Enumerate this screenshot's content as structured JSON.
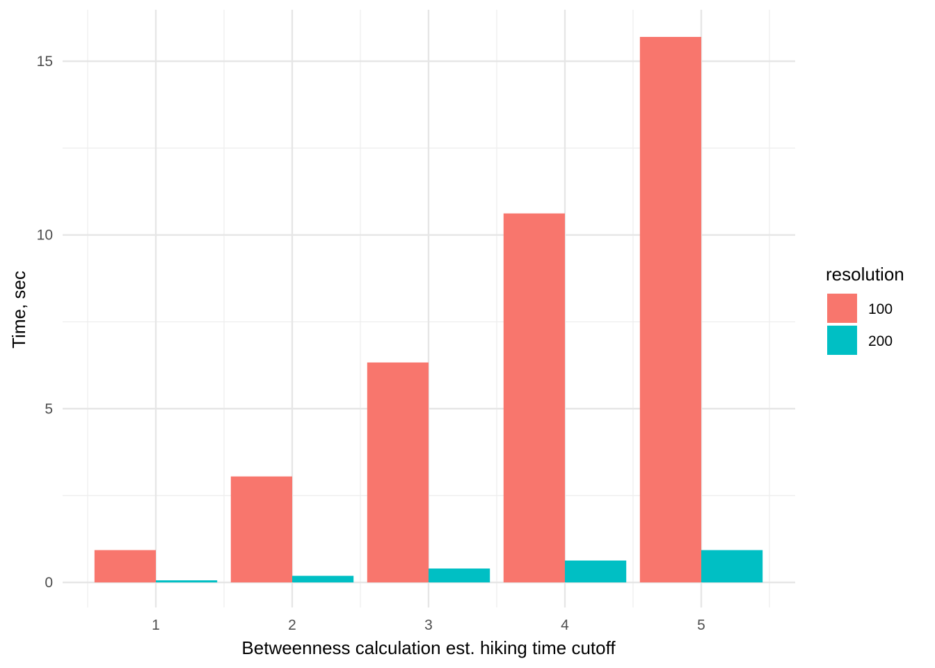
{
  "chart_data": {
    "type": "bar",
    "title": "",
    "xlabel": "Betweenness calculation est. hiking time cutoff",
    "ylabel": "Time, sec",
    "categories": [
      "1",
      "2",
      "3",
      "4",
      "5"
    ],
    "series": [
      {
        "name": "100",
        "color": "#F8766D",
        "values": [
          0.93,
          3.05,
          6.33,
          10.62,
          15.7
        ]
      },
      {
        "name": "200",
        "color": "#00BFC4",
        "values": [
          0.06,
          0.19,
          0.4,
          0.63,
          0.93
        ]
      }
    ],
    "ylim": [
      0,
      16
    ],
    "yticks": [
      "0",
      "5",
      "10",
      "15"
    ],
    "ytick_values": [
      0,
      5,
      10,
      15
    ],
    "grid": true,
    "legend": {
      "title": "resolution",
      "placement": "right"
    }
  }
}
